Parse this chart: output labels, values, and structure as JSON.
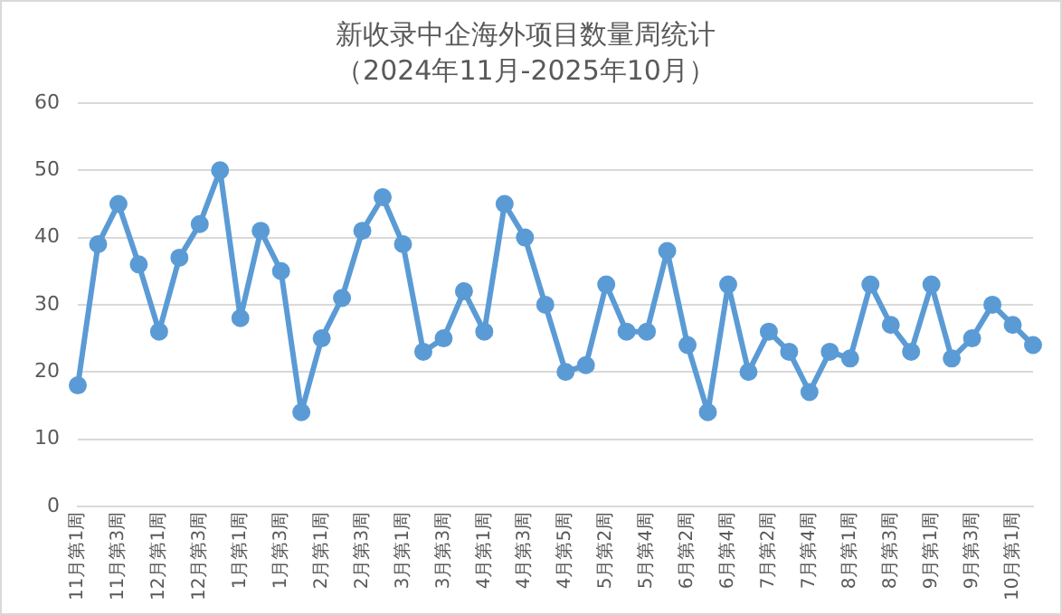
{
  "chart_data": {
    "type": "line",
    "title": "新收录中企海外项目数量周统计",
    "subtitle": "（2024年11月-2025年10月）",
    "categories": [
      "11月第1周",
      null,
      "11月第3周",
      null,
      "12月第1周",
      null,
      "12月第3周",
      null,
      "1月第1周",
      null,
      "1月第3周",
      null,
      "2月第1周",
      null,
      "2月第3周",
      null,
      "3月第1周",
      null,
      "3月第3周",
      null,
      "4月第1周",
      null,
      "4月第3周",
      null,
      "4月第5周",
      null,
      "5月第2周",
      null,
      "5月第4周",
      null,
      "6月第2周",
      null,
      "6月第4周",
      null,
      "7月第2周",
      null,
      "7月第4周",
      null,
      "8月第1周",
      null,
      "8月第3周",
      null,
      "9月第1周",
      null,
      "9月第3周",
      null,
      "10月第1周",
      null
    ],
    "series": [
      {
        "color": "#5b9bd5",
        "values": [
          18,
          39,
          45,
          36,
          26,
          37,
          42,
          50,
          28,
          41,
          35,
          14,
          25,
          31,
          41,
          46,
          39,
          23,
          25,
          32,
          26,
          45,
          40,
          30,
          20,
          21,
          33,
          26,
          26,
          38,
          24,
          14,
          33,
          20,
          26,
          23,
          17,
          23,
          22,
          33,
          27,
          23,
          33,
          22,
          25,
          30,
          27,
          24
        ]
      }
    ],
    "ylim": [
      0,
      60
    ],
    "yticks": [
      0,
      10,
      20,
      30,
      40,
      50,
      60
    ],
    "grid": "y",
    "legend": false,
    "marker": "circle",
    "line_style": "solid"
  }
}
